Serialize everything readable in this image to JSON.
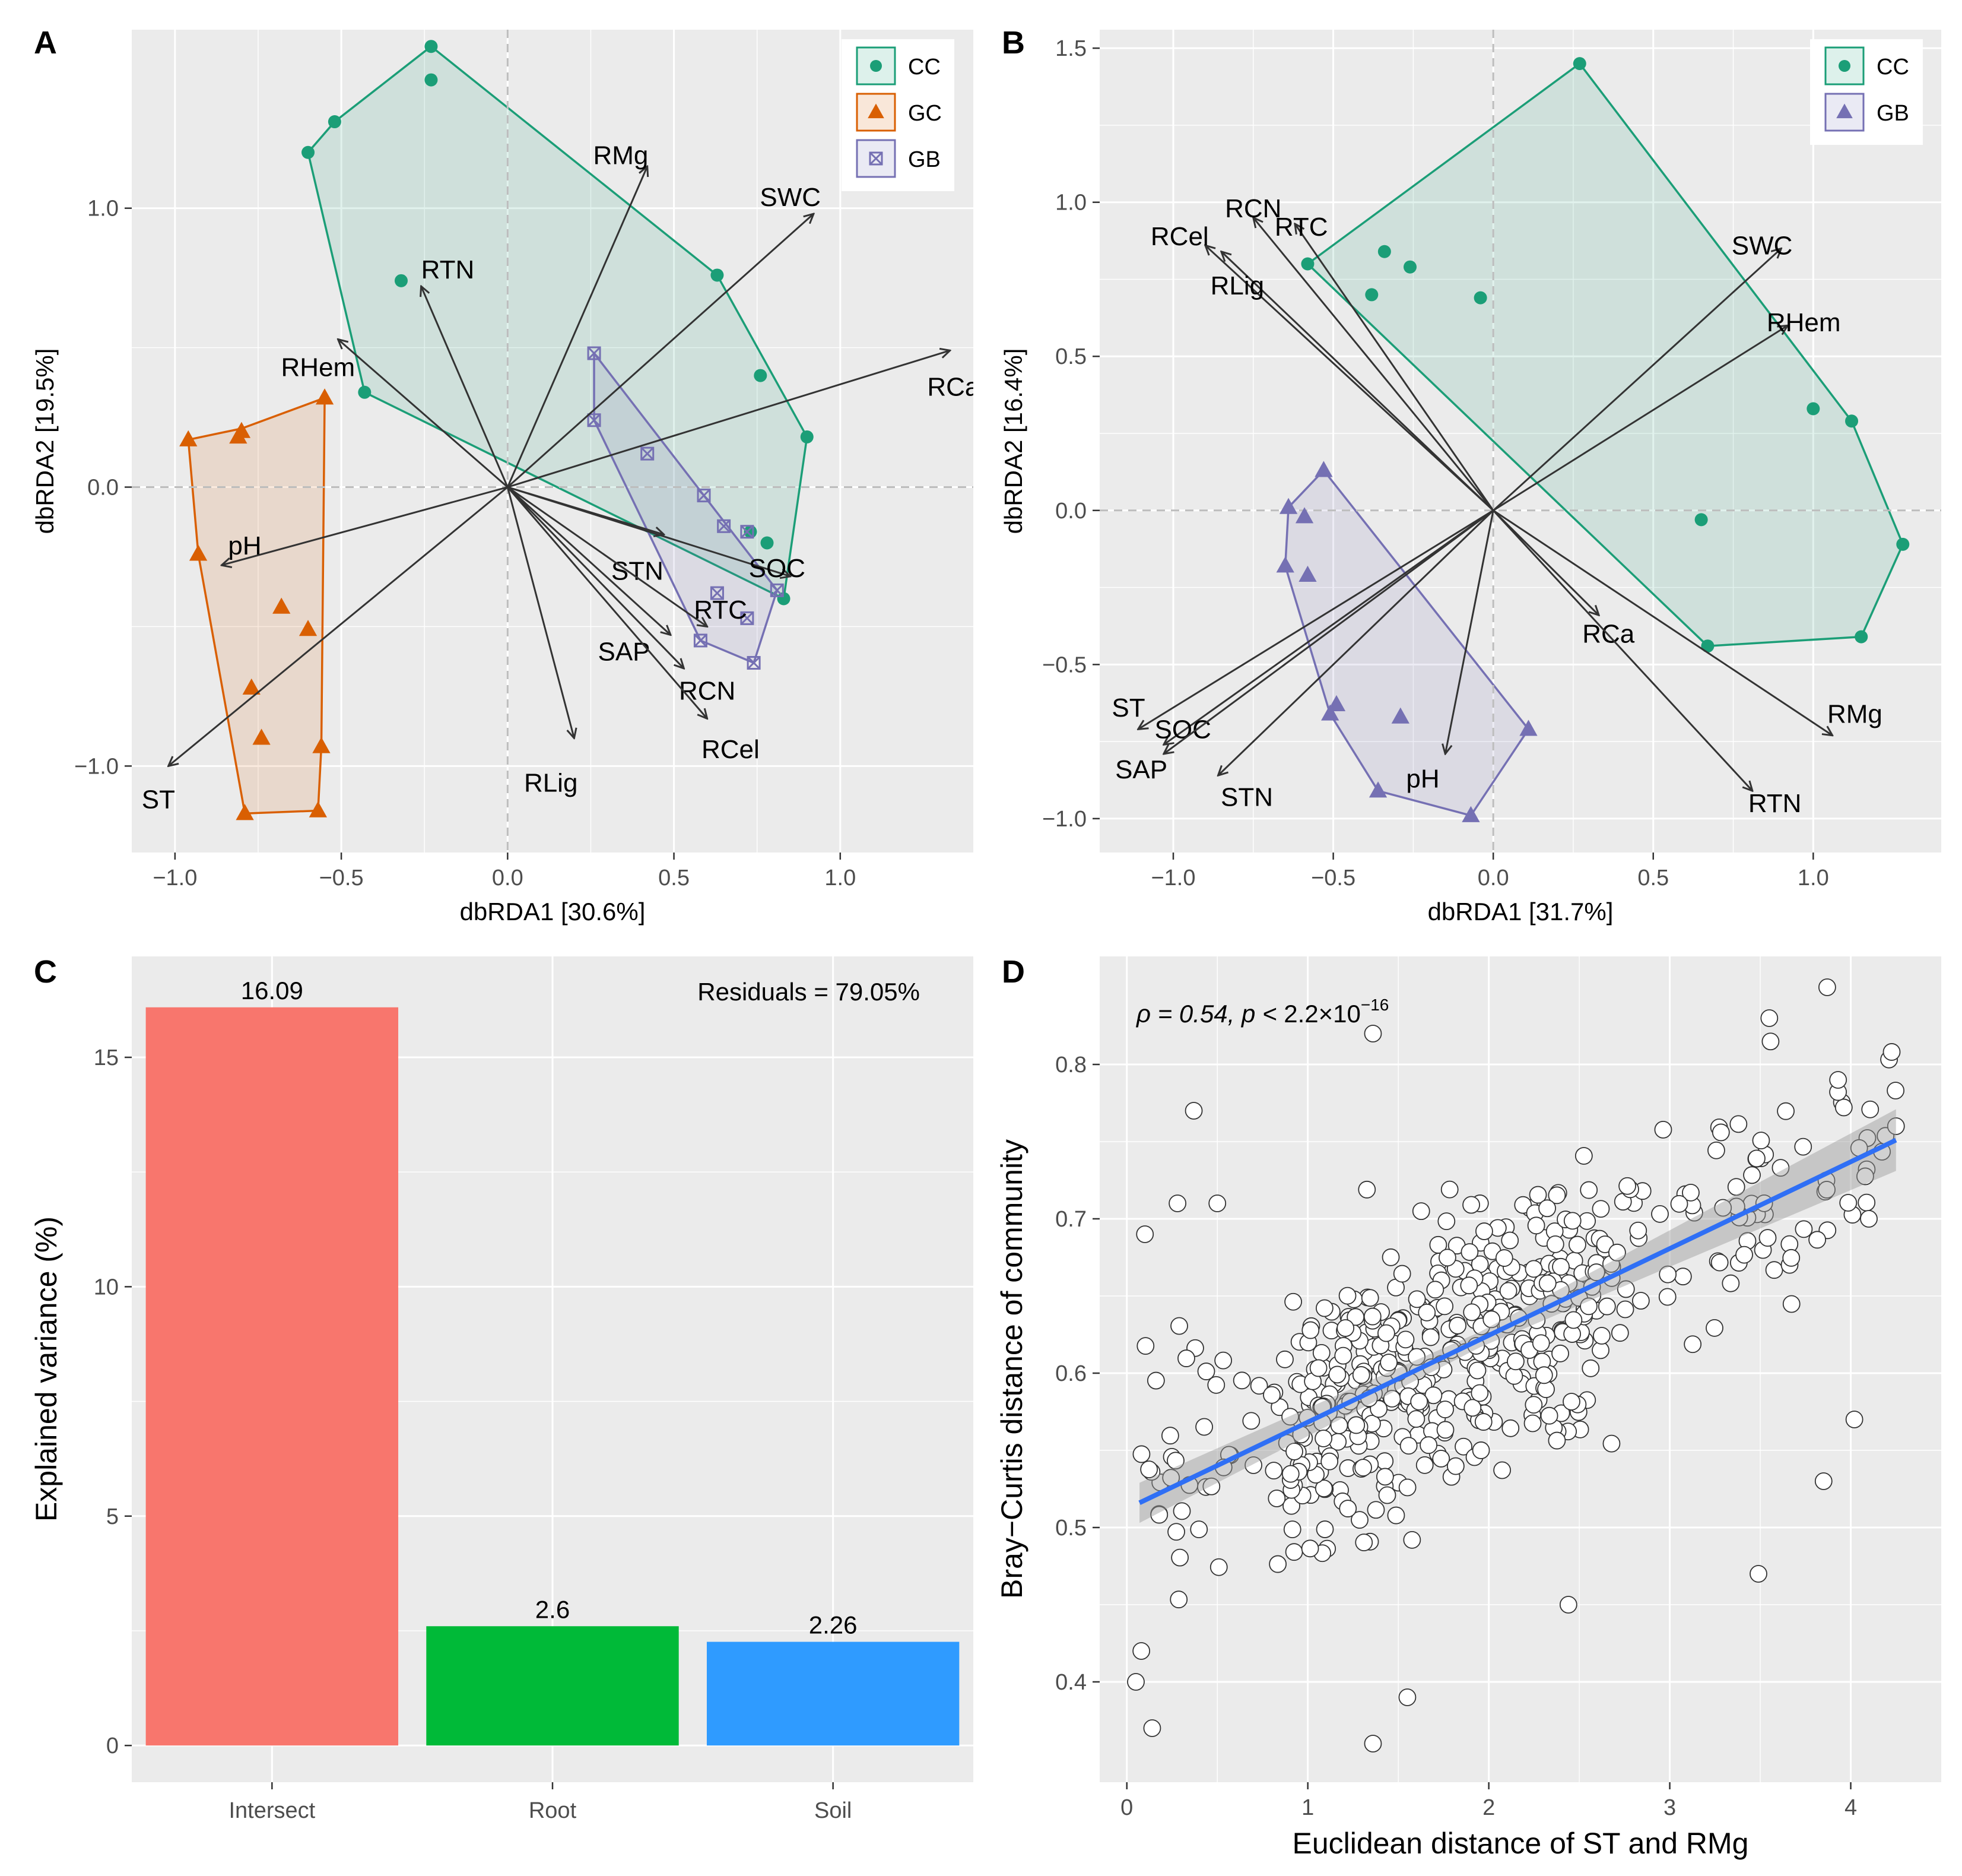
{
  "chart_data": [
    {
      "id": "A",
      "type": "scatter",
      "panel_label": "A",
      "xlabel": "dbRDA1 [30.6%]",
      "ylabel": "dbRDA2 [19.5%]",
      "xlim": [
        -1.13,
        1.4
      ],
      "ylim": [
        -1.31,
        1.64
      ],
      "xticks": [
        -1.0,
        -0.5,
        0.0,
        0.5,
        1.0
      ],
      "xtick_labels": [
        "−1.0",
        "−0.5",
        "0.0",
        "0.5",
        "1.0"
      ],
      "yticks": [
        -1.0,
        0.0,
        1.0
      ],
      "ytick_labels": [
        "−1.0",
        "0.0",
        "1.0"
      ],
      "legend": [
        {
          "name": "CC",
          "color": "#1b9e77",
          "shape": "circle"
        },
        {
          "name": "GC",
          "color": "#d95f02",
          "shape": "triangle"
        },
        {
          "name": "GB",
          "color": "#7570b3",
          "shape": "boxx"
        }
      ],
      "series": [
        {
          "name": "CC",
          "color": "#1b9e77",
          "shape": "circle",
          "points": [
            [
              -0.23,
              1.58
            ],
            [
              -0.23,
              1.46
            ],
            [
              -0.52,
              1.31
            ],
            [
              -0.6,
              1.2
            ],
            [
              -0.32,
              0.74
            ],
            [
              0.63,
              0.76
            ],
            [
              0.76,
              0.4
            ],
            [
              0.9,
              0.18
            ],
            [
              -0.43,
              0.34
            ],
            [
              0.73,
              -0.16
            ],
            [
              0.78,
              -0.2
            ],
            [
              0.83,
              -0.4
            ]
          ],
          "hull": [
            [
              -0.23,
              1.58
            ],
            [
              0.63,
              0.76
            ],
            [
              0.9,
              0.18
            ],
            [
              0.83,
              -0.4
            ],
            [
              -0.43,
              0.34
            ],
            [
              -0.6,
              1.2
            ],
            [
              -0.52,
              1.31
            ]
          ]
        },
        {
          "name": "GC",
          "color": "#d95f02",
          "shape": "triangle",
          "points": [
            [
              -0.96,
              0.17
            ],
            [
              -0.8,
              0.2
            ],
            [
              -0.81,
              0.18
            ],
            [
              -0.55,
              0.32
            ],
            [
              -0.93,
              -0.24
            ],
            [
              -0.68,
              -0.43
            ],
            [
              -0.6,
              -0.51
            ],
            [
              -0.77,
              -0.72
            ],
            [
              -0.74,
              -0.9
            ],
            [
              -0.56,
              -0.93
            ],
            [
              -0.79,
              -1.17
            ],
            [
              -0.57,
              -1.16
            ]
          ],
          "hull": [
            [
              -0.96,
              0.17
            ],
            [
              -0.8,
              0.21
            ],
            [
              -0.55,
              0.32
            ],
            [
              -0.56,
              -0.93
            ],
            [
              -0.57,
              -1.16
            ],
            [
              -0.79,
              -1.17
            ],
            [
              -0.93,
              -0.24
            ]
          ]
        },
        {
          "name": "GB",
          "color": "#7570b3",
          "shape": "boxx",
          "points": [
            [
              0.26,
              0.48
            ],
            [
              0.26,
              0.24
            ],
            [
              0.42,
              0.12
            ],
            [
              0.59,
              -0.03
            ],
            [
              0.65,
              -0.14
            ],
            [
              0.72,
              -0.16
            ],
            [
              0.63,
              -0.38
            ],
            [
              0.58,
              -0.55
            ],
            [
              0.72,
              -0.47
            ],
            [
              0.81,
              -0.37
            ],
            [
              0.74,
              -0.63
            ]
          ],
          "hull": [
            [
              0.26,
              0.48
            ],
            [
              0.81,
              -0.37
            ],
            [
              0.74,
              -0.63
            ],
            [
              0.58,
              -0.55
            ],
            [
              0.26,
              0.24
            ]
          ]
        }
      ],
      "vectors": [
        {
          "name": "RMg",
          "x": 0.42,
          "y": 1.15,
          "lx": 0.34,
          "ly": 1.19
        },
        {
          "name": "SWC",
          "x": 0.92,
          "y": 0.98,
          "lx": 0.85,
          "ly": 1.04
        },
        {
          "name": "RCa",
          "x": 1.33,
          "y": 0.49,
          "lx": 1.34,
          "ly": 0.36
        },
        {
          "name": "RTN",
          "x": -0.26,
          "y": 0.72,
          "lx": -0.18,
          "ly": 0.78
        },
        {
          "name": "RHem",
          "x": -0.51,
          "y": 0.53,
          "lx": -0.57,
          "ly": 0.43
        },
        {
          "name": "pH",
          "x": -0.86,
          "y": -0.28,
          "lx": -0.79,
          "ly": -0.21
        },
        {
          "name": "ST",
          "x": -1.02,
          "y": -1.0,
          "lx": -1.05,
          "ly": -1.12
        },
        {
          "name": "RLig",
          "x": 0.2,
          "y": -0.9,
          "lx": 0.13,
          "ly": -1.06
        },
        {
          "name": "STN",
          "x": 0.47,
          "y": -0.17,
          "lx": 0.39,
          "ly": -0.3
        },
        {
          "name": "SOC",
          "x": 0.85,
          "y": -0.32,
          "lx": 0.81,
          "ly": -0.29
        },
        {
          "name": "RTC",
          "x": 0.6,
          "y": -0.5,
          "lx": 0.64,
          "ly": -0.44
        },
        {
          "name": "SAP",
          "x": 0.49,
          "y": -0.53,
          "lx": 0.35,
          "ly": -0.59
        },
        {
          "name": "RCN",
          "x": 0.53,
          "y": -0.65,
          "lx": 0.6,
          "ly": -0.73
        },
        {
          "name": "RCel",
          "x": 0.6,
          "y": -0.83,
          "lx": 0.67,
          "ly": -0.94
        }
      ]
    },
    {
      "id": "B",
      "type": "scatter",
      "panel_label": "B",
      "xlabel": "dbRDA1 [31.7%]",
      "ylabel": "dbRDA2 [16.4%]",
      "xlim": [
        -1.23,
        1.4
      ],
      "ylim": [
        -1.11,
        1.56
      ],
      "xticks": [
        -1.0,
        -0.5,
        0.0,
        0.5,
        1.0
      ],
      "xtick_labels": [
        "−1.0",
        "−0.5",
        "0.0",
        "0.5",
        "1.0"
      ],
      "yticks": [
        -1.0,
        -0.5,
        0.0,
        0.5,
        1.0,
        1.5
      ],
      "ytick_labels": [
        "−1.0",
        "−0.5",
        "0.0",
        "0.5",
        "1.0",
        "1.5"
      ],
      "legend": [
        {
          "name": "CC",
          "color": "#1b9e77",
          "shape": "circle"
        },
        {
          "name": "GB",
          "color": "#7570b3",
          "shape": "triangle"
        }
      ],
      "series": [
        {
          "name": "CC",
          "color": "#1b9e77",
          "shape": "circle",
          "points": [
            [
              0.27,
              1.45
            ],
            [
              -0.58,
              0.8
            ],
            [
              -0.34,
              0.84
            ],
            [
              -0.26,
              0.79
            ],
            [
              -0.38,
              0.7
            ],
            [
              -0.04,
              0.69
            ],
            [
              1.0,
              0.33
            ],
            [
              1.12,
              0.29
            ],
            [
              0.65,
              -0.03
            ],
            [
              1.28,
              -0.11
            ],
            [
              1.15,
              -0.41
            ],
            [
              0.67,
              -0.44
            ]
          ],
          "hull": [
            [
              0.27,
              1.45
            ],
            [
              1.12,
              0.29
            ],
            [
              1.28,
              -0.11
            ],
            [
              1.15,
              -0.41
            ],
            [
              0.67,
              -0.44
            ],
            [
              -0.58,
              0.8
            ]
          ]
        },
        {
          "name": "GB",
          "color": "#7570b3",
          "shape": "triangle",
          "points": [
            [
              -0.53,
              0.13
            ],
            [
              -0.64,
              0.01
            ],
            [
              -0.59,
              -0.02
            ],
            [
              -0.65,
              -0.18
            ],
            [
              -0.58,
              -0.21
            ],
            [
              -0.49,
              -0.63
            ],
            [
              -0.51,
              -0.66
            ],
            [
              -0.29,
              -0.67
            ],
            [
              0.11,
              -0.71
            ],
            [
              -0.36,
              -0.91
            ],
            [
              -0.07,
              -0.99
            ]
          ],
          "hull": [
            [
              -0.53,
              0.13
            ],
            [
              0.11,
              -0.71
            ],
            [
              -0.07,
              -0.99
            ],
            [
              -0.36,
              -0.91
            ],
            [
              -0.51,
              -0.66
            ],
            [
              -0.65,
              -0.18
            ],
            [
              -0.64,
              0.01
            ]
          ]
        }
      ],
      "vectors": [
        {
          "name": "RCN",
          "x": -0.75,
          "y": 0.95,
          "lx": -0.75,
          "ly": 0.98
        },
        {
          "name": "RTC",
          "x": -0.62,
          "y": 0.93,
          "lx": -0.6,
          "ly": 0.92
        },
        {
          "name": "RCel",
          "x": -0.9,
          "y": 0.86,
          "lx": -0.98,
          "ly": 0.89
        },
        {
          "name": "RLig",
          "x": -0.85,
          "y": 0.84,
          "lx": -0.8,
          "ly": 0.73
        },
        {
          "name": "SWC",
          "x": 0.9,
          "y": 0.85,
          "lx": 0.84,
          "ly": 0.86
        },
        {
          "name": "RHem",
          "x": 0.92,
          "y": 0.6,
          "lx": 0.97,
          "ly": 0.61
        },
        {
          "name": "RCa",
          "x": 0.33,
          "y": -0.34,
          "lx": 0.36,
          "ly": -0.4
        },
        {
          "name": "RMg",
          "x": 1.06,
          "y": -0.73,
          "lx": 1.13,
          "ly": -0.66
        },
        {
          "name": "RTN",
          "x": 0.81,
          "y": -0.91,
          "lx": 0.88,
          "ly": -0.95
        },
        {
          "name": "pH",
          "x": -0.15,
          "y": -0.79,
          "lx": -0.22,
          "ly": -0.87
        },
        {
          "name": "ST",
          "x": -1.11,
          "y": -0.71,
          "lx": -1.14,
          "ly": -0.64
        },
        {
          "name": "SOC",
          "x": -1.03,
          "y": -0.76,
          "lx": -0.97,
          "ly": -0.71
        },
        {
          "name": "SAP",
          "x": -1.03,
          "y": -0.79,
          "lx": -1.1,
          "ly": -0.84
        },
        {
          "name": "STN",
          "x": -0.86,
          "y": -0.86,
          "lx": -0.77,
          "ly": -0.93
        }
      ]
    },
    {
      "id": "C",
      "type": "bar",
      "panel_label": "C",
      "categories": [
        "Intersect",
        "Root",
        "Soil"
      ],
      "values": [
        16.09,
        2.6,
        2.26
      ],
      "value_labels": [
        "16.09",
        "2.6",
        "2.26"
      ],
      "colors": [
        "#f8766d",
        "#00ba38",
        "#2f9bff"
      ],
      "ylabel": "Explained variance (%)",
      "xlabel": "",
      "ylim": [
        -0.8,
        17.2
      ],
      "yticks": [
        0,
        5,
        10,
        15
      ],
      "ytick_labels": [
        "0",
        "5",
        "10",
        "15"
      ],
      "annotation": "Residuals = 79.05%"
    },
    {
      "id": "D",
      "type": "scatter",
      "panel_label": "D",
      "xlabel": "Euclidean distance of ST and RMg",
      "ylabel": "Bray−Curtis distance of community",
      "xlim": [
        -0.15,
        4.5
      ],
      "ylim": [
        0.335,
        0.87
      ],
      "xticks": [
        0,
        1,
        2,
        3,
        4
      ],
      "xtick_labels": [
        "0",
        "1",
        "2",
        "3",
        "4"
      ],
      "yticks": [
        0.4,
        0.5,
        0.6,
        0.7,
        0.8
      ],
      "ytick_labels": [
        "0.4",
        "0.5",
        "0.6",
        "0.7",
        "0.8"
      ],
      "fit": {
        "x0": 0.07,
        "y0": 0.516,
        "x1": 4.25,
        "y1": 0.751,
        "ci_halfwidth_start": 0.013,
        "ci_halfwidth_mid": 0.005,
        "ci_halfwidth_end": 0.02
      },
      "stat_prefix": "ρ = 0.54, p < ",
      "stat_value": "2.2×10",
      "stat_exponent": "−16",
      "n_points": 560,
      "points_spec": "monotone positive relation; Bray-Curtis ranges ~0.36-0.85 across distances 0.05-4.25",
      "highlight_points": [
        [
          0.05,
          0.4
        ],
        [
          0.08,
          0.42
        ],
        [
          0.1,
          0.69
        ],
        [
          0.14,
          0.37
        ],
        [
          0.28,
          0.71
        ],
        [
          0.37,
          0.77
        ],
        [
          0.5,
          0.71
        ],
        [
          1.36,
          0.36
        ],
        [
          1.36,
          0.82
        ],
        [
          1.55,
          0.39
        ],
        [
          2.44,
          0.45
        ],
        [
          3.49,
          0.47
        ],
        [
          3.55,
          0.83
        ],
        [
          3.85,
          0.53
        ],
        [
          3.87,
          0.85
        ],
        [
          3.93,
          0.79
        ],
        [
          4.02,
          0.57
        ],
        [
          4.1,
          0.7
        ],
        [
          4.25,
          0.76
        ]
      ]
    }
  ]
}
